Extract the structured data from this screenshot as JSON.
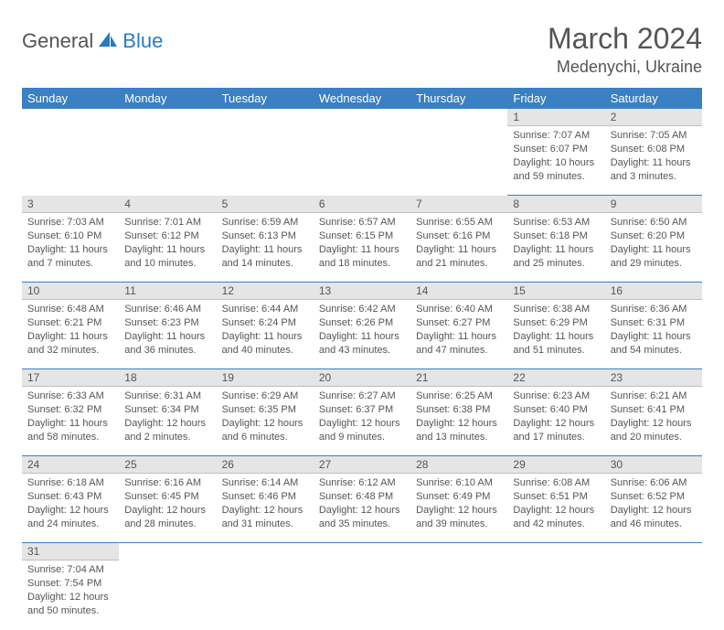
{
  "logo": {
    "part1": "General",
    "part2": "Blue"
  },
  "title": "March 2024",
  "location": "Medenychi, Ukraine",
  "colors": {
    "header_bg": "#3a80c3",
    "header_text": "#ffffff",
    "daynum_bg": "#e5e5e5",
    "border": "#3a80c3",
    "text": "#555555",
    "logo_blue": "#2b7bbf"
  },
  "weekdays": [
    "Sunday",
    "Monday",
    "Tuesday",
    "Wednesday",
    "Thursday",
    "Friday",
    "Saturday"
  ],
  "weeks": [
    {
      "days": [
        {
          "num": "",
          "lines": [
            "",
            "",
            "",
            ""
          ]
        },
        {
          "num": "",
          "lines": [
            "",
            "",
            "",
            ""
          ]
        },
        {
          "num": "",
          "lines": [
            "",
            "",
            "",
            ""
          ]
        },
        {
          "num": "",
          "lines": [
            "",
            "",
            "",
            ""
          ]
        },
        {
          "num": "",
          "lines": [
            "",
            "",
            "",
            ""
          ]
        },
        {
          "num": "1",
          "lines": [
            "Sunrise: 7:07 AM",
            "Sunset: 6:07 PM",
            "Daylight: 10 hours",
            "and 59 minutes."
          ]
        },
        {
          "num": "2",
          "lines": [
            "Sunrise: 7:05 AM",
            "Sunset: 6:08 PM",
            "Daylight: 11 hours",
            "and 3 minutes."
          ]
        }
      ]
    },
    {
      "days": [
        {
          "num": "3",
          "lines": [
            "Sunrise: 7:03 AM",
            "Sunset: 6:10 PM",
            "Daylight: 11 hours",
            "and 7 minutes."
          ]
        },
        {
          "num": "4",
          "lines": [
            "Sunrise: 7:01 AM",
            "Sunset: 6:12 PM",
            "Daylight: 11 hours",
            "and 10 minutes."
          ]
        },
        {
          "num": "5",
          "lines": [
            "Sunrise: 6:59 AM",
            "Sunset: 6:13 PM",
            "Daylight: 11 hours",
            "and 14 minutes."
          ]
        },
        {
          "num": "6",
          "lines": [
            "Sunrise: 6:57 AM",
            "Sunset: 6:15 PM",
            "Daylight: 11 hours",
            "and 18 minutes."
          ]
        },
        {
          "num": "7",
          "lines": [
            "Sunrise: 6:55 AM",
            "Sunset: 6:16 PM",
            "Daylight: 11 hours",
            "and 21 minutes."
          ]
        },
        {
          "num": "8",
          "lines": [
            "Sunrise: 6:53 AM",
            "Sunset: 6:18 PM",
            "Daylight: 11 hours",
            "and 25 minutes."
          ]
        },
        {
          "num": "9",
          "lines": [
            "Sunrise: 6:50 AM",
            "Sunset: 6:20 PM",
            "Daylight: 11 hours",
            "and 29 minutes."
          ]
        }
      ]
    },
    {
      "days": [
        {
          "num": "10",
          "lines": [
            "Sunrise: 6:48 AM",
            "Sunset: 6:21 PM",
            "Daylight: 11 hours",
            "and 32 minutes."
          ]
        },
        {
          "num": "11",
          "lines": [
            "Sunrise: 6:46 AM",
            "Sunset: 6:23 PM",
            "Daylight: 11 hours",
            "and 36 minutes."
          ]
        },
        {
          "num": "12",
          "lines": [
            "Sunrise: 6:44 AM",
            "Sunset: 6:24 PM",
            "Daylight: 11 hours",
            "and 40 minutes."
          ]
        },
        {
          "num": "13",
          "lines": [
            "Sunrise: 6:42 AM",
            "Sunset: 6:26 PM",
            "Daylight: 11 hours",
            "and 43 minutes."
          ]
        },
        {
          "num": "14",
          "lines": [
            "Sunrise: 6:40 AM",
            "Sunset: 6:27 PM",
            "Daylight: 11 hours",
            "and 47 minutes."
          ]
        },
        {
          "num": "15",
          "lines": [
            "Sunrise: 6:38 AM",
            "Sunset: 6:29 PM",
            "Daylight: 11 hours",
            "and 51 minutes."
          ]
        },
        {
          "num": "16",
          "lines": [
            "Sunrise: 6:36 AM",
            "Sunset: 6:31 PM",
            "Daylight: 11 hours",
            "and 54 minutes."
          ]
        }
      ]
    },
    {
      "days": [
        {
          "num": "17",
          "lines": [
            "Sunrise: 6:33 AM",
            "Sunset: 6:32 PM",
            "Daylight: 11 hours",
            "and 58 minutes."
          ]
        },
        {
          "num": "18",
          "lines": [
            "Sunrise: 6:31 AM",
            "Sunset: 6:34 PM",
            "Daylight: 12 hours",
            "and 2 minutes."
          ]
        },
        {
          "num": "19",
          "lines": [
            "Sunrise: 6:29 AM",
            "Sunset: 6:35 PM",
            "Daylight: 12 hours",
            "and 6 minutes."
          ]
        },
        {
          "num": "20",
          "lines": [
            "Sunrise: 6:27 AM",
            "Sunset: 6:37 PM",
            "Daylight: 12 hours",
            "and 9 minutes."
          ]
        },
        {
          "num": "21",
          "lines": [
            "Sunrise: 6:25 AM",
            "Sunset: 6:38 PM",
            "Daylight: 12 hours",
            "and 13 minutes."
          ]
        },
        {
          "num": "22",
          "lines": [
            "Sunrise: 6:23 AM",
            "Sunset: 6:40 PM",
            "Daylight: 12 hours",
            "and 17 minutes."
          ]
        },
        {
          "num": "23",
          "lines": [
            "Sunrise: 6:21 AM",
            "Sunset: 6:41 PM",
            "Daylight: 12 hours",
            "and 20 minutes."
          ]
        }
      ]
    },
    {
      "days": [
        {
          "num": "24",
          "lines": [
            "Sunrise: 6:18 AM",
            "Sunset: 6:43 PM",
            "Daylight: 12 hours",
            "and 24 minutes."
          ]
        },
        {
          "num": "25",
          "lines": [
            "Sunrise: 6:16 AM",
            "Sunset: 6:45 PM",
            "Daylight: 12 hours",
            "and 28 minutes."
          ]
        },
        {
          "num": "26",
          "lines": [
            "Sunrise: 6:14 AM",
            "Sunset: 6:46 PM",
            "Daylight: 12 hours",
            "and 31 minutes."
          ]
        },
        {
          "num": "27",
          "lines": [
            "Sunrise: 6:12 AM",
            "Sunset: 6:48 PM",
            "Daylight: 12 hours",
            "and 35 minutes."
          ]
        },
        {
          "num": "28",
          "lines": [
            "Sunrise: 6:10 AM",
            "Sunset: 6:49 PM",
            "Daylight: 12 hours",
            "and 39 minutes."
          ]
        },
        {
          "num": "29",
          "lines": [
            "Sunrise: 6:08 AM",
            "Sunset: 6:51 PM",
            "Daylight: 12 hours",
            "and 42 minutes."
          ]
        },
        {
          "num": "30",
          "lines": [
            "Sunrise: 6:06 AM",
            "Sunset: 6:52 PM",
            "Daylight: 12 hours",
            "and 46 minutes."
          ]
        }
      ]
    },
    {
      "days": [
        {
          "num": "31",
          "lines": [
            "Sunrise: 7:04 AM",
            "Sunset: 7:54 PM",
            "Daylight: 12 hours",
            "and 50 minutes."
          ]
        },
        {
          "num": "",
          "lines": [
            "",
            "",
            "",
            ""
          ]
        },
        {
          "num": "",
          "lines": [
            "",
            "",
            "",
            ""
          ]
        },
        {
          "num": "",
          "lines": [
            "",
            "",
            "",
            ""
          ]
        },
        {
          "num": "",
          "lines": [
            "",
            "",
            "",
            ""
          ]
        },
        {
          "num": "",
          "lines": [
            "",
            "",
            "",
            ""
          ]
        },
        {
          "num": "",
          "lines": [
            "",
            "",
            "",
            ""
          ]
        }
      ]
    }
  ]
}
